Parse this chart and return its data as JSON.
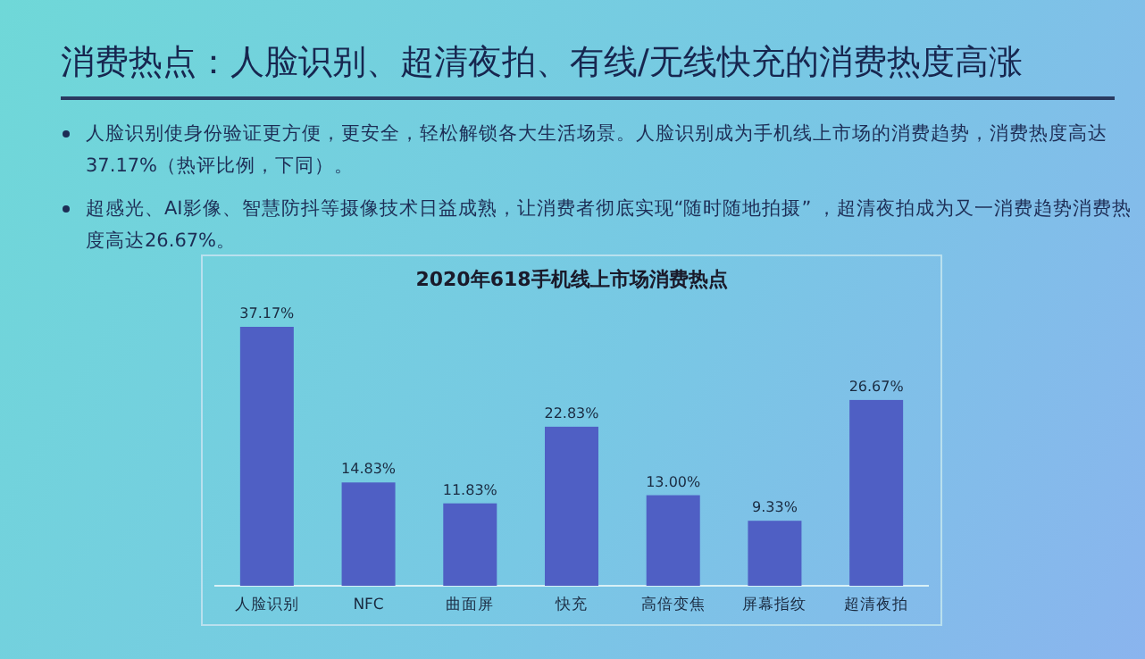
{
  "chart_data": {
    "type": "bar",
    "title": "消费热点：人脸识别、超清夜拍、有线/无线快充的消费热度高涨",
    "subtitle": "2020年618手机线上市场消费热点",
    "annotations": [
      "人脸识别使身份验证更方便，更安全，轻松解锁各大生活场景。人脸识别成为手机线上市场的消费趋势，消费热度高达37.17%（热评比例，下同）。",
      "超感光、AI影像、智慧防抖等摄像技术日益成熟，让消费者彻底实现“随时随地拍摄” ，超清夜拍成为又一消费趋势消费热度高达26.67%。"
    ],
    "categories": [
      "人脸识别",
      "NFC",
      "曲面屏",
      "快充",
      "高倍变焦",
      "屏幕指纹",
      "超清夜拍"
    ],
    "values": [
      37.17,
      14.83,
      11.83,
      22.83,
      13.0,
      9.33,
      26.67
    ],
    "value_labels": [
      "37.17%",
      "14.83%",
      "11.83%",
      "22.83%",
      "13.00%",
      "9.33%",
      "26.67%"
    ],
    "color": "#4f5fc4"
  }
}
